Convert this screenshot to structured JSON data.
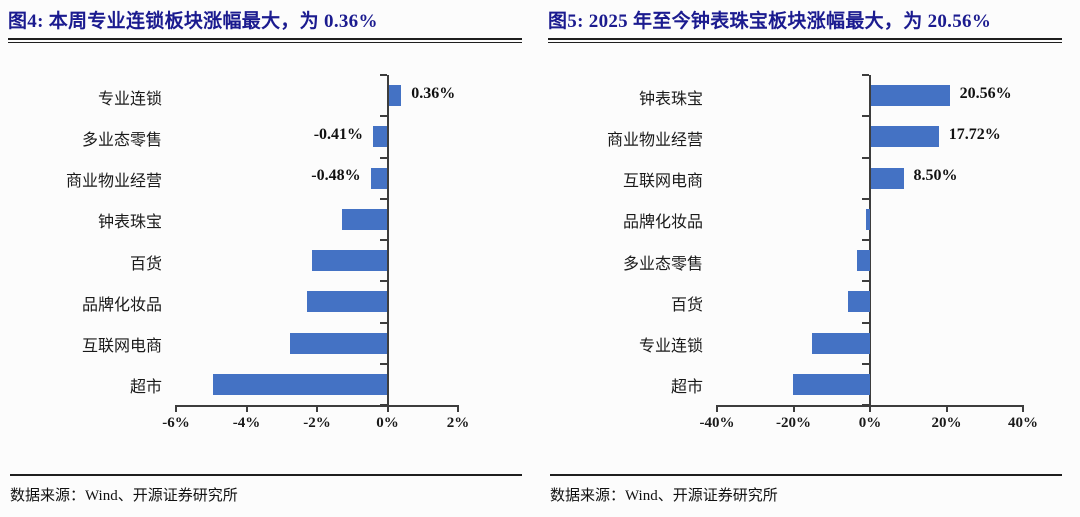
{
  "colors": {
    "bar": "#4472C4",
    "title": "#1b1b8f",
    "axis": "#3d3d3d"
  },
  "chart_data": [
    {
      "id": "figure-4",
      "type": "bar",
      "orientation": "horizontal",
      "title": "图4:  本周专业连锁板块涨幅最大，为 0.36%",
      "categories": [
        "专业连锁",
        "多业态零售",
        "商业物业经营",
        "钟表珠宝",
        "百货",
        "品牌化妆品",
        "互联网电商",
        "超市"
      ],
      "values": [
        0.36,
        -0.41,
        -0.48,
        -1.28,
        -2.13,
        -2.27,
        -2.78,
        -4.94
      ],
      "data_labels": [
        "0.36%",
        "-0.41%",
        "-0.48%",
        null,
        null,
        null,
        null,
        null
      ],
      "xlim": [
        -6,
        2
      ],
      "x_ticks": [
        {
          "v": -6,
          "label": "-6%"
        },
        {
          "v": -4,
          "label": "-4%"
        },
        {
          "v": -2,
          "label": "-2%"
        },
        {
          "v": 0,
          "label": "0%"
        },
        {
          "v": 2,
          "label": "2%"
        }
      ],
      "grid": false,
      "legend": "none",
      "source": "数据来源：Wind、开源证券研究所"
    },
    {
      "id": "figure-5",
      "type": "bar",
      "orientation": "horizontal",
      "title": "图5:  2025 年至今钟表珠宝板块涨幅最大，为 20.56%",
      "categories": [
        "钟表珠宝",
        "商业物业经营",
        "互联网电商",
        "品牌化妆品",
        "多业态零售",
        "百货",
        "专业连锁",
        "超市"
      ],
      "values": [
        20.56,
        17.72,
        8.5,
        -1.1,
        -3.4,
        -5.7,
        -15.2,
        -20.1
      ],
      "data_labels": [
        "20.56%",
        "17.72%",
        "8.50%",
        null,
        null,
        null,
        null,
        null
      ],
      "xlim": [
        -40,
        40
      ],
      "x_ticks": [
        {
          "v": -40,
          "label": "-40%"
        },
        {
          "v": -20,
          "label": "-20%"
        },
        {
          "v": 0,
          "label": "0%"
        },
        {
          "v": 20,
          "label": "20%"
        },
        {
          "v": 40,
          "label": "40%"
        }
      ],
      "grid": false,
      "legend": "none",
      "source": "数据来源：Wind、开源证券研究所"
    }
  ]
}
